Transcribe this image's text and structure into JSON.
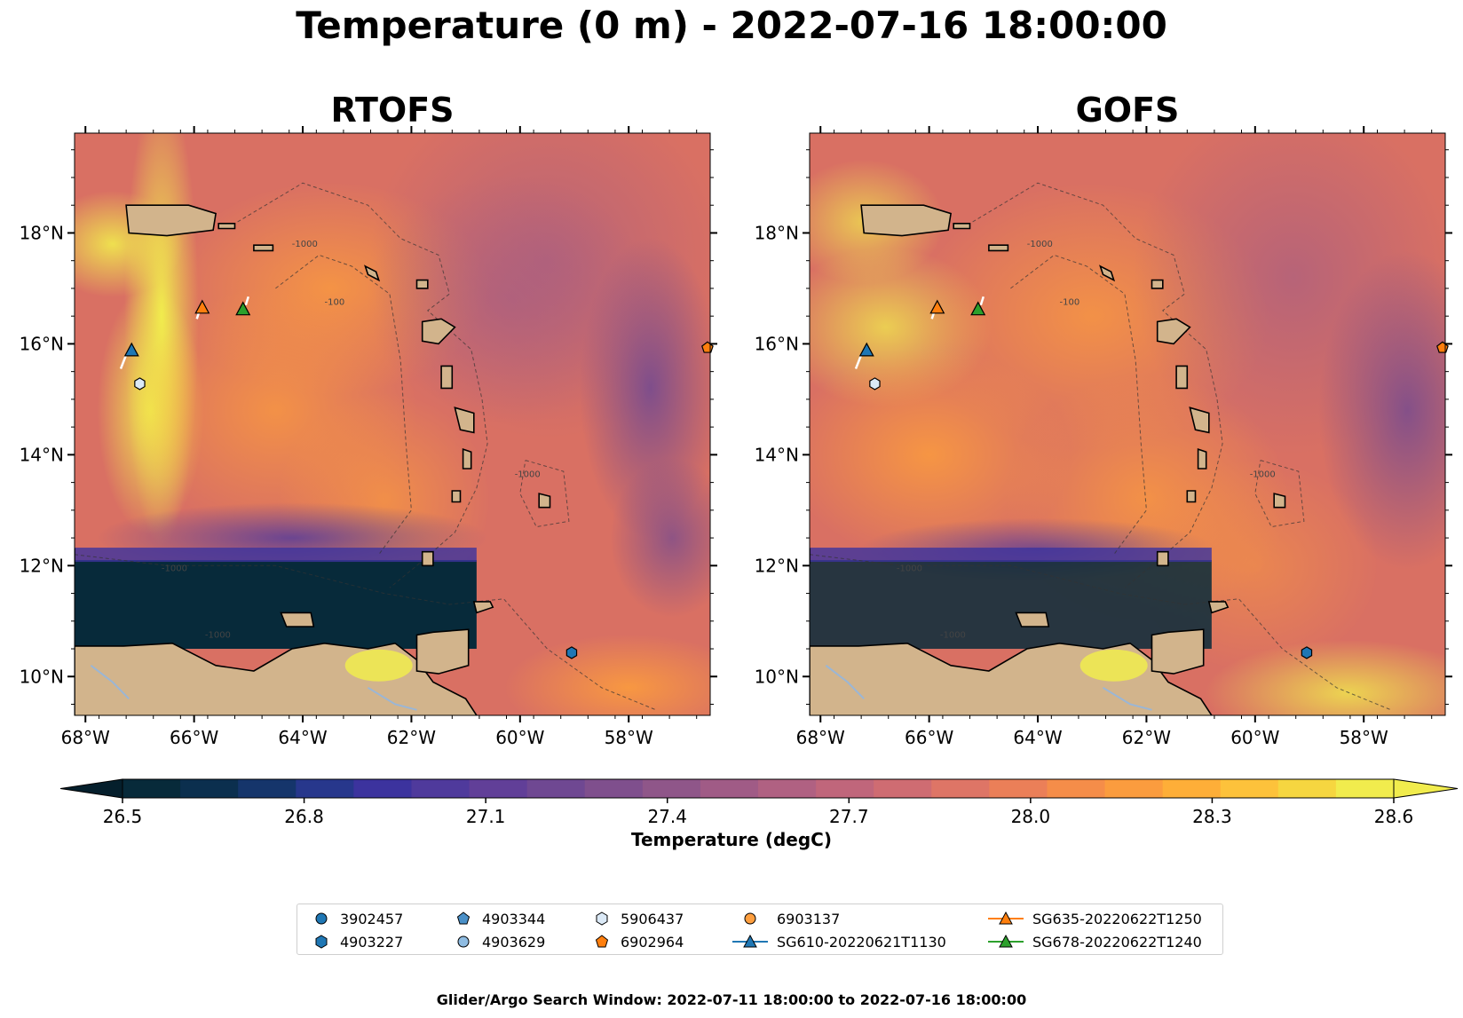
{
  "title": "Temperature (0 m) - 2022-07-16 18:00:00",
  "panels": [
    {
      "title": "RTOFS"
    },
    {
      "title": "GOFS"
    }
  ],
  "axes": {
    "lon_ticks": [
      "68°W",
      "66°W",
      "64°W",
      "62°W",
      "60°W",
      "58°W"
    ],
    "lat_ticks": [
      "18°N",
      "16°N",
      "14°N",
      "12°N",
      "10°N"
    ],
    "lon_range": [
      -68.2,
      -56.5
    ],
    "lat_range": [
      9.3,
      19.8
    ]
  },
  "contour_labels": [
    "-1000",
    "-100"
  ],
  "colorbar": {
    "label": "Temperature (degC)",
    "ticks": [
      "26.5",
      "26.8",
      "27.1",
      "27.4",
      "27.7",
      "28.0",
      "28.3",
      "28.6"
    ],
    "range": [
      26.5,
      28.6
    ],
    "colors": [
      "#072a3a",
      "#0b2f4e",
      "#15356b",
      "#27378c",
      "#3c339e",
      "#4f3a9c",
      "#613f98",
      "#6f4892",
      "#7f4f8d",
      "#8f5689",
      "#a05b86",
      "#b06182",
      "#c0667b",
      "#cf6c72",
      "#de7566",
      "#eb7f58",
      "#f58d49",
      "#fb9c3e",
      "#feae38",
      "#fdc23b",
      "#f6d640",
      "#f1ec4d"
    ],
    "extend": "both"
  },
  "legend": [
    {
      "label": "3902457",
      "marker": "circle",
      "color": "#1f77b4"
    },
    {
      "label": "4903227",
      "marker": "hexagon",
      "color": "#1f77b4"
    },
    {
      "label": "4903344",
      "marker": "pentagon",
      "color": "#4a90c8"
    },
    {
      "label": "4903629",
      "marker": "circle",
      "color": "#8fbce2"
    },
    {
      "label": "5906437",
      "marker": "hexagon",
      "color": "#dbe9f6"
    },
    {
      "label": "6902964",
      "marker": "pentagon",
      "color": "#ff7f0e"
    },
    {
      "label": "6903137",
      "marker": "circle",
      "color": "#ff9f3f"
    },
    {
      "label": "SG610-20220621T1130",
      "marker": "triangle-line",
      "color": "#1f77b4"
    },
    {
      "label": "SG635-20220622T1250",
      "marker": "triangle-line",
      "color": "#ff7f0e"
    },
    {
      "label": "SG678-20220622T1240",
      "marker": "triangle-line",
      "color": "#2ca02c"
    }
  ],
  "platforms": [
    {
      "id": "SG635-20220622T1250",
      "lon": -65.85,
      "lat": 16.65,
      "marker": "triangle",
      "color": "#ff7f0e"
    },
    {
      "id": "SG678-20220622T1240",
      "lon": -65.1,
      "lat": 16.62,
      "marker": "triangle",
      "color": "#2ca02c"
    },
    {
      "id": "SG610-20220621T1130",
      "lon": -67.15,
      "lat": 15.88,
      "marker": "triangle",
      "color": "#1f77b4"
    },
    {
      "id": "5906437",
      "lon": -67.0,
      "lat": 15.28,
      "marker": "hexagon",
      "color": "#dbe9f6"
    },
    {
      "id": "6902964",
      "lon": -56.55,
      "lat": 15.93,
      "marker": "pentagon",
      "color": "#ff7f0e"
    },
    {
      "id": "4903227",
      "lon": -59.05,
      "lat": 10.43,
      "marker": "hexagon",
      "color": "#1f77b4"
    }
  ],
  "footer": "Glider/Argo Search Window: 2022-07-11 18:00:00 to 2022-07-16 18:00:00"
}
